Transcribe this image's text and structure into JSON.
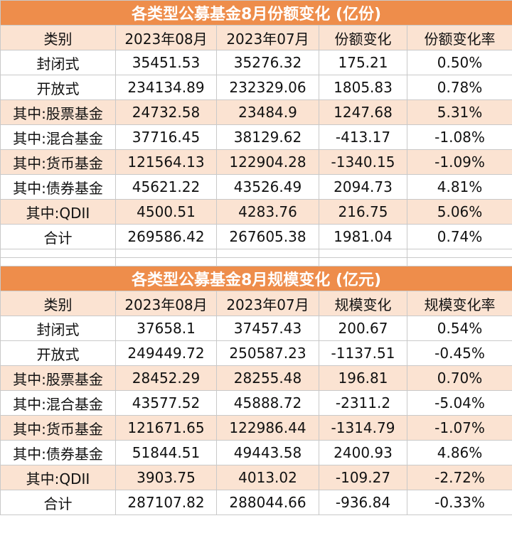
{
  "tables": [
    {
      "title": "各类型公募基金8月份额变化 (亿份)",
      "headers": [
        "类别",
        "2023年08月",
        "2023年07月",
        "份额变化",
        "份额变化率"
      ],
      "rows": [
        [
          "封闭式",
          "35451.53",
          "35276.32",
          "175.21",
          "0.50%"
        ],
        [
          "开放式",
          "234134.89",
          "232329.06",
          "1805.83",
          "0.78%"
        ],
        [
          "其中:股票基金",
          "24732.58",
          "23484.9",
          "1247.68",
          "5.31%"
        ],
        [
          "其中:混合基金",
          "37716.45",
          "38129.62",
          "-413.17",
          "-1.08%"
        ],
        [
          "其中:货币基金",
          "121564.13",
          "122904.28",
          "-1340.15",
          "-1.09%"
        ],
        [
          "其中:债券基金",
          "45621.22",
          "43526.49",
          "2094.73",
          "4.81%"
        ],
        [
          "其中:QDII",
          "4500.51",
          "4283.76",
          "216.75",
          "5.06%"
        ],
        [
          "合计",
          "269586.42",
          "267605.38",
          "1981.04",
          "0.74%"
        ]
      ]
    },
    {
      "title": "各类型公募基金8月规模变化 (亿元)",
      "headers": [
        "类别",
        "2023年08月",
        "2023年07月",
        "规模变化",
        "规模变化率"
      ],
      "rows": [
        [
          "封闭式",
          "37658.1",
          "37457.43",
          "200.67",
          "0.54%"
        ],
        [
          "开放式",
          "249449.72",
          "250587.23",
          "-1137.51",
          "-0.45%"
        ],
        [
          "其中:股票基金",
          "28452.29",
          "28255.48",
          "196.81",
          "0.70%"
        ],
        [
          "其中:混合基金",
          "43577.52",
          "45888.72",
          "-2311.2",
          "-5.04%"
        ],
        [
          "其中:货币基金",
          "121671.65",
          "122986.44",
          "-1314.79",
          "-1.07%"
        ],
        [
          "其中:债券基金",
          "51844.51",
          "49443.58",
          "2400.93",
          "4.86%"
        ],
        [
          "其中:QDII",
          "3903.75",
          "4013.02",
          "-109.27",
          "-2.72%"
        ],
        [
          "合计",
          "287107.82",
          "288044.66",
          "-936.84",
          "-0.33%"
        ]
      ]
    }
  ],
  "colors": {
    "title_bg": "#ee8d4b",
    "title_text": "#ffffff",
    "stripe_bg": "#fbe3d2",
    "border": "#c9c9c9"
  }
}
